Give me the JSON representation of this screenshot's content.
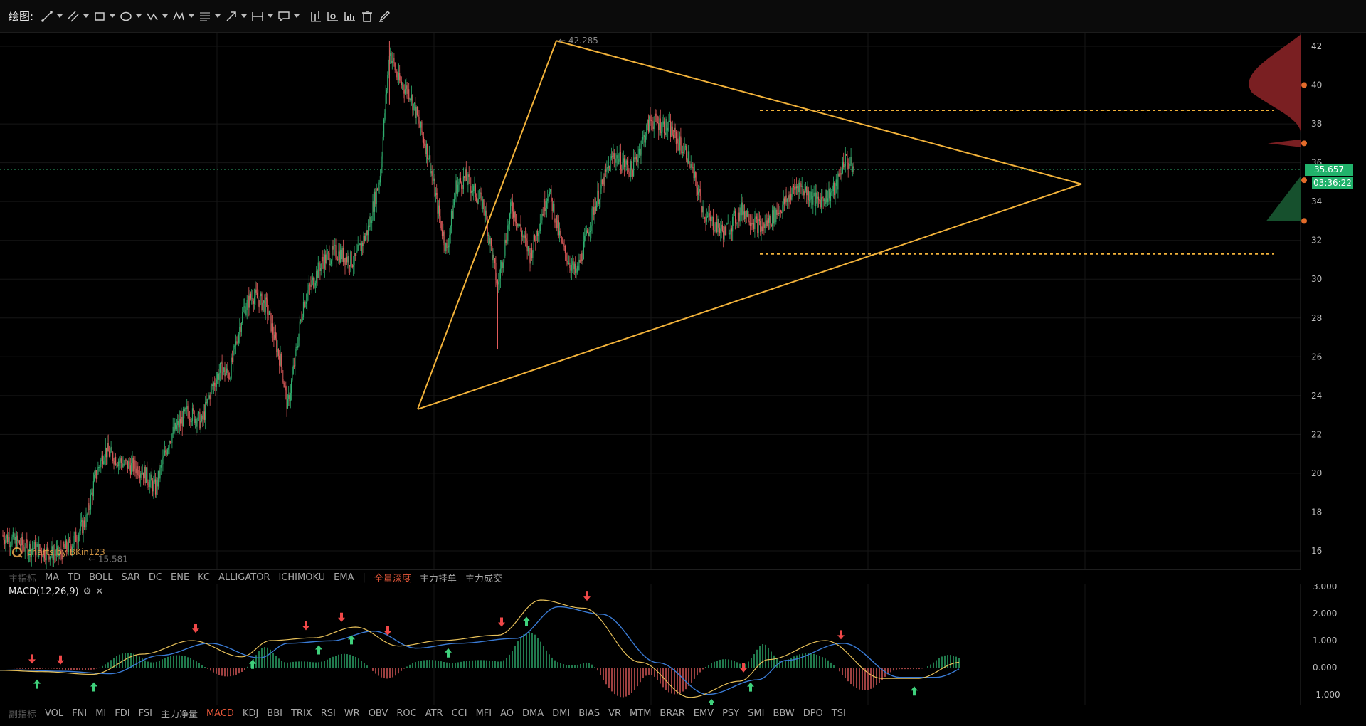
{
  "toolbar": {
    "title": "绘图:",
    "tools": [
      "line-tool",
      "ray-tool",
      "rect-tool",
      "ellipse-tool",
      "zigzag-tool",
      "pattern-tool",
      "fib-tool",
      "arrow-tool",
      "range-tool",
      "comment-tool",
      "bar-tool",
      "chart-tool",
      "histogram-tool",
      "trash-tool",
      "brush-tool"
    ]
  },
  "price_axis": {
    "labels": [
      "42",
      "40",
      "38",
      "36",
      "34",
      "32",
      "30",
      "28",
      "26",
      "24",
      "22",
      "20",
      "18",
      "16"
    ],
    "current_price": "35.657",
    "countdown": "03:36:22"
  },
  "annotations": {
    "high_label": "42.285",
    "low_label": "15.581"
  },
  "watermark": "charts by BKin123",
  "main_indicators": [
    "主指标",
    "MA",
    "TD",
    "BOLL",
    "SAR",
    "DC",
    "ENE",
    "KC",
    "ALLIGATOR",
    "ICHIMOKU",
    "EMA",
    "|",
    "全量深度",
    "主力挂单",
    "主力成交"
  ],
  "macd": {
    "label": "MACD(12,26,9)",
    "axis_labels": [
      "3.000",
      "2.000",
      "1.000",
      "0.000",
      "-1.000"
    ]
  },
  "sub_indicators": [
    "副指标",
    "VOL",
    "FNI",
    "MI",
    "FDI",
    "FSI",
    "主力净量",
    "MACD",
    "KDJ",
    "BBI",
    "TRIX",
    "RSI",
    "WR",
    "OBV",
    "ROC",
    "ATR",
    "CCI",
    "MFI",
    "AO",
    "DMA",
    "DMI",
    "BIAS",
    "VR",
    "MTM",
    "BRAR",
    "EMV",
    "PSY",
    "SMI",
    "BBW",
    "DPO",
    "TSI"
  ],
  "colors": {
    "up": "#2fae6e",
    "down": "#e05b5b",
    "triangle": "#f2b23a",
    "accent": "#e8583a"
  },
  "chart_data": {
    "type": "candlestick",
    "ylim": [
      15,
      42.6
    ],
    "high": 42.285,
    "low": 15.581,
    "last": 35.657,
    "triangle": {
      "apex_price": 34.9,
      "top_start_price": 42.285,
      "bottom_start_price": 23.3
    },
    "support_level": 31.3,
    "resistance_level": 38.7,
    "trend_path": [
      [
        0,
        16.8
      ],
      [
        25,
        16.2
      ],
      [
        60,
        15.8
      ],
      [
        75,
        16.4
      ],
      [
        90,
        17.6
      ],
      [
        100,
        19.8
      ],
      [
        110,
        21.2
      ],
      [
        130,
        20.5
      ],
      [
        150,
        20.2
      ],
      [
        165,
        19.2
      ],
      [
        180,
        21.8
      ],
      [
        200,
        23.2
      ],
      [
        215,
        22.6
      ],
      [
        225,
        24.3
      ],
      [
        235,
        25.3
      ],
      [
        245,
        25.1
      ],
      [
        260,
        28.4
      ],
      [
        270,
        29.2
      ],
      [
        285,
        28.6
      ],
      [
        300,
        25.8
      ],
      [
        308,
        23.4
      ],
      [
        325,
        28.8
      ],
      [
        345,
        30.9
      ],
      [
        360,
        31.4
      ],
      [
        380,
        30.9
      ],
      [
        395,
        32.6
      ],
      [
        408,
        35.4
      ],
      [
        418,
        41.8
      ],
      [
        428,
        40.2
      ],
      [
        440,
        39.6
      ],
      [
        460,
        36.4
      ],
      [
        472,
        33.2
      ],
      [
        480,
        31.4
      ],
      [
        490,
        34.8
      ],
      [
        500,
        35.2
      ],
      [
        520,
        33.8
      ],
      [
        535,
        29.6
      ],
      [
        550,
        33.8
      ],
      [
        570,
        31.2
      ],
      [
        590,
        34.6
      ],
      [
        605,
        31.6
      ],
      [
        620,
        30.2
      ],
      [
        640,
        33.8
      ],
      [
        660,
        36.4
      ],
      [
        680,
        35.6
      ],
      [
        700,
        38.2
      ],
      [
        720,
        37.8
      ],
      [
        740,
        36.4
      ],
      [
        760,
        33.2
      ],
      [
        780,
        32.4
      ],
      [
        800,
        33.6
      ],
      [
        820,
        32.6
      ],
      [
        840,
        33.6
      ],
      [
        860,
        34.9
      ],
      [
        880,
        34.0
      ],
      [
        900,
        34.6
      ],
      [
        910,
        36.2
      ],
      [
        920,
        35.7
      ]
    ]
  }
}
